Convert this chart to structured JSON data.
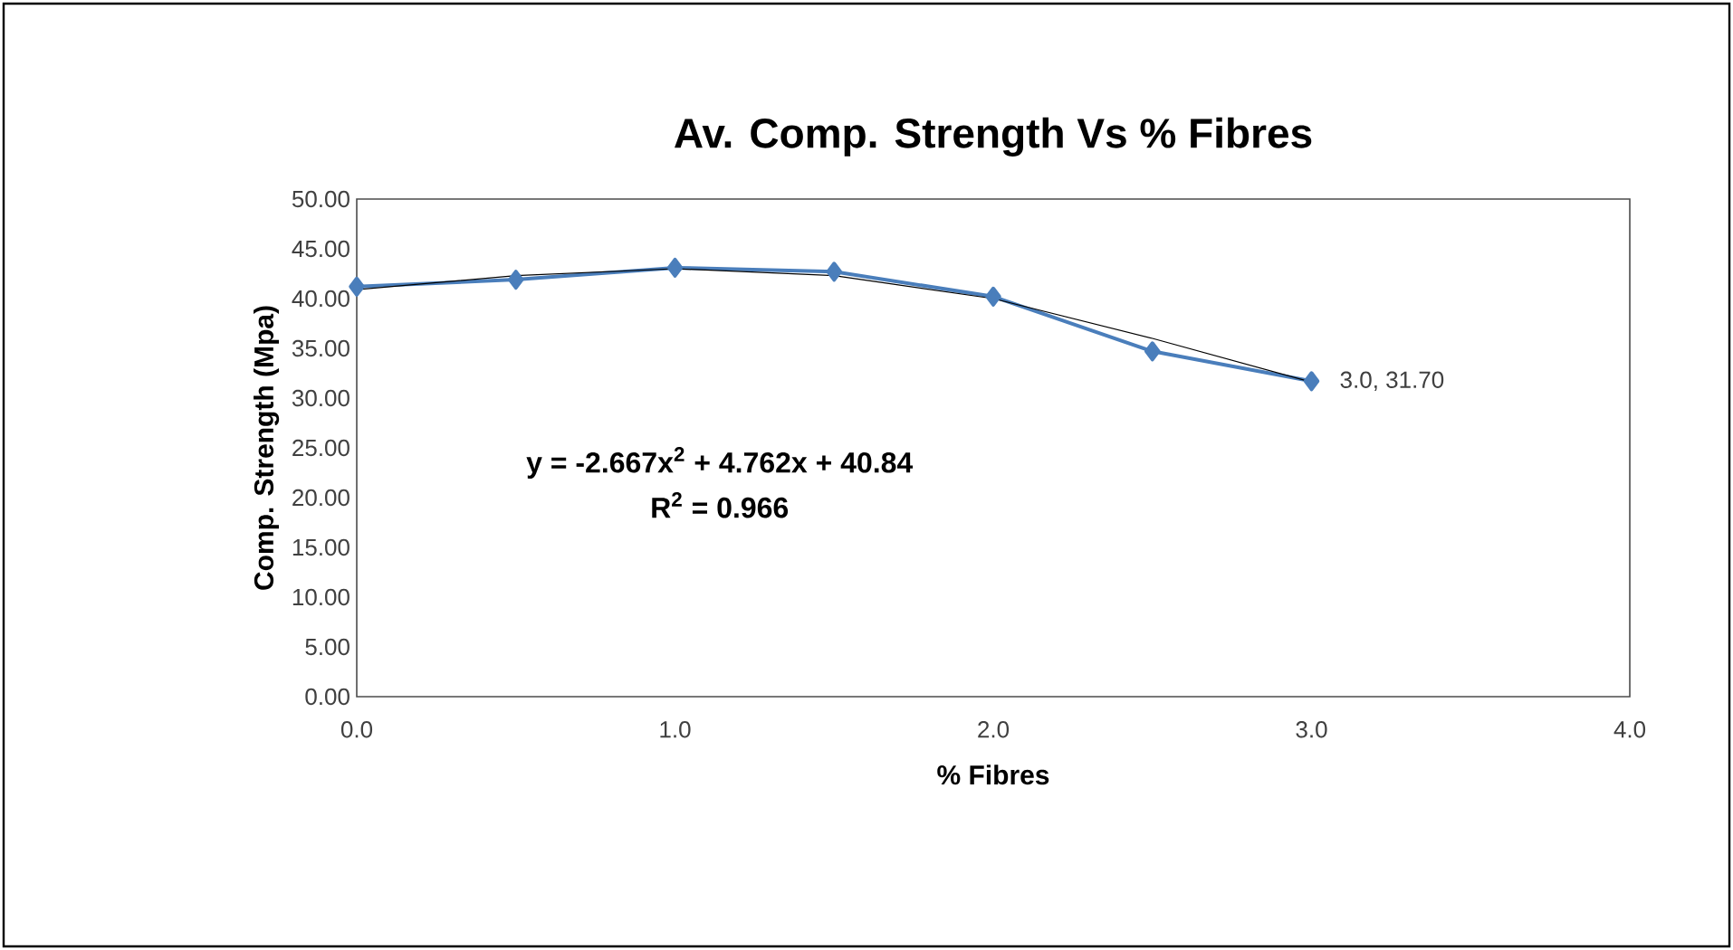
{
  "chart_data": {
    "type": "line",
    "title": "Av. Comp. Strength Vs % Fibres",
    "xlabel": "% Fibres",
    "ylabel": "Comp. Strength (Mpa)",
    "series": [
      {
        "color": "#4a7ebb",
        "x": [
          0,
          0.5,
          1,
          1.5,
          2,
          2.5,
          3
        ],
        "values": [
          41.2,
          41.9,
          43.1,
          42.7,
          40.2,
          34.7,
          31.7
        ],
        "marker": "diamond"
      },
      {
        "color": "#000000",
        "type": "line",
        "x": [
          0,
          0.5,
          1,
          1.5,
          2,
          2.5,
          3
        ],
        "values": [
          40.9,
          42.3,
          43.0,
          42.3,
          40.0,
          36.0,
          31.6
        ],
        "marker": "none"
      }
    ],
    "xlim": [
      0,
      4
    ],
    "xticks": [
      {
        "value": 0,
        "label": "0.0"
      },
      {
        "value": 1,
        "label": "1.0"
      },
      {
        "value": 2,
        "label": "2.0"
      },
      {
        "value": 3,
        "label": "3.0"
      },
      {
        "value": 4,
        "label": "4.0"
      }
    ],
    "ylim": [
      0,
      50
    ],
    "yticks": [
      {
        "value": 0,
        "label": "0.00"
      },
      {
        "value": 5,
        "label": "5.00"
      },
      {
        "value": 10,
        "label": "10.00"
      },
      {
        "value": 15,
        "label": "15.00"
      },
      {
        "value": 20,
        "label": "20.00"
      },
      {
        "value": 25,
        "label": "25.00"
      },
      {
        "value": 30,
        "label": "30.00"
      },
      {
        "value": 35,
        "label": "35.00"
      },
      {
        "value": 40,
        "label": "40.00"
      },
      {
        "value": 45,
        "label": "45.00"
      },
      {
        "value": 50,
        "label": "50.00"
      }
    ],
    "annotations": [
      {
        "text": "3.0, 31.70",
        "x": 3,
        "y": 31.7
      },
      "y = -2.667x$^{2}$ + 4.762x + 40.84",
      "R$^{2}$ = 0.966"
    ],
    "grid": false
  }
}
